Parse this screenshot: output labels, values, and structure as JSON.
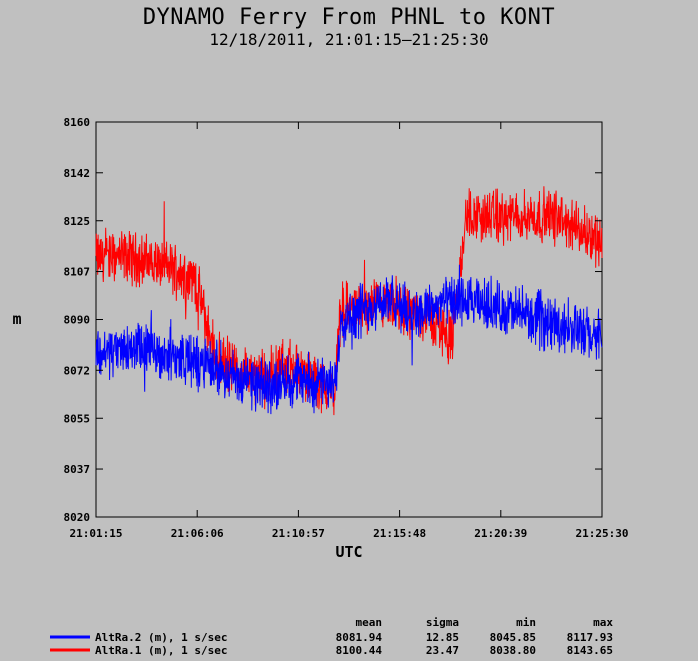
{
  "chart_data": {
    "type": "line",
    "title": "DYNAMO Ferry From PHNL to KONT",
    "subtitle": "12/18/2011, 21:01:15–21:25:30",
    "xlabel": "UTC",
    "ylabel": "m",
    "xlim": [
      "21:01:15",
      "21:25:30"
    ],
    "ylim": [
      8020,
      8160
    ],
    "x_ticks": [
      "21:01:15",
      "21:06:06",
      "21:10:57",
      "21:15:48",
      "21:20:39",
      "21:25:30"
    ],
    "y_ticks": [
      "8160",
      "8142",
      "8125",
      "8107",
      "8090",
      "8072",
      "8055",
      "8037",
      "8020"
    ],
    "grid": false,
    "legend_position": "bottom",
    "stats_headers": [
      "mean",
      "sigma",
      "min",
      "max"
    ],
    "series": [
      {
        "name": "AltRa.2 (m), 1 s/sec",
        "color": "#0000ff",
        "mean": "8081.94",
        "sigma": "12.85",
        "min": "8045.85",
        "max": "8117.93",
        "trend": [
          [
            "21:01:15",
            8078
          ],
          [
            "21:03:00",
            8080
          ],
          [
            "21:05:00",
            8077
          ],
          [
            "21:07:00",
            8073
          ],
          [
            "21:09:00",
            8066
          ],
          [
            "21:11:00",
            8069
          ],
          [
            "21:12:40",
            8066
          ],
          [
            "21:13:00",
            8090
          ],
          [
            "21:15:00",
            8097
          ],
          [
            "21:16:30",
            8092
          ],
          [
            "21:18:00",
            8096
          ],
          [
            "21:20:00",
            8095
          ],
          [
            "21:22:00",
            8091
          ],
          [
            "21:24:00",
            8087
          ],
          [
            "21:25:30",
            8083
          ]
        ]
      },
      {
        "name": "AltRa.1 (m), 1 s/sec",
        "color": "#ff0000",
        "mean": "8100.44",
        "sigma": "23.47",
        "min": "8038.80",
        "max": "8143.65",
        "trend": [
          [
            "21:01:15",
            8112
          ],
          [
            "21:03:00",
            8112
          ],
          [
            "21:05:00",
            8108
          ],
          [
            "21:06:00",
            8104
          ],
          [
            "21:07:00",
            8076
          ],
          [
            "21:09:00",
            8069
          ],
          [
            "21:10:30",
            8074
          ],
          [
            "21:12:40",
            8064
          ],
          [
            "21:13:00",
            8094
          ],
          [
            "21:15:00",
            8094
          ],
          [
            "21:17:00",
            8092
          ],
          [
            "21:18:20",
            8083
          ],
          [
            "21:19:00",
            8127
          ],
          [
            "21:21:00",
            8126
          ],
          [
            "21:23:00",
            8127
          ],
          [
            "21:25:30",
            8118
          ]
        ]
      }
    ]
  }
}
